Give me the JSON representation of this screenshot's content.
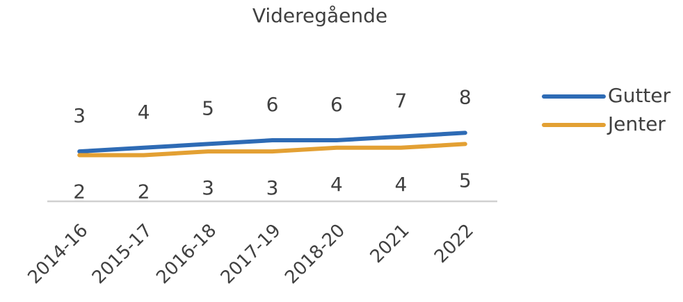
{
  "chart_data": {
    "type": "line",
    "title": "Videregående",
    "categories": [
      "2014-16",
      "2015-17",
      "2016-18",
      "2017-19",
      "2018-20",
      "2021",
      "2022"
    ],
    "series": [
      {
        "name": "Gutter",
        "color": "#2e6bb5",
        "values": [
          3,
          4,
          5,
          6,
          6,
          7,
          8
        ]
      },
      {
        "name": "Jenter",
        "color": "#e3a033",
        "values": [
          2,
          2,
          3,
          3,
          4,
          4,
          5
        ]
      }
    ],
    "ylim": [
      -10,
      25
    ],
    "grid": false,
    "legend": "right",
    "data_labels": true
  }
}
